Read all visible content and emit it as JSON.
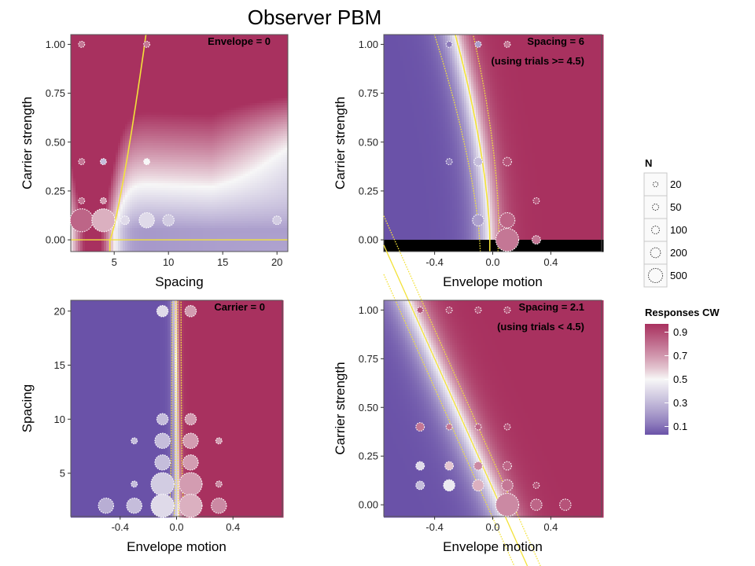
{
  "title": "Observer PBM",
  "colors": {
    "low": "#6a52a8",
    "mid": "#f7f7f7",
    "high": "#a8315f",
    "contour": "#f3e23a",
    "circle_stroke": "#ffffff"
  },
  "chart_data": [
    {
      "type": "heatmap",
      "id": "p1",
      "annotation": [
        "Envelope = 0"
      ],
      "xlabel": "Spacing",
      "ylabel": "Carrier strength",
      "xlim": [
        1,
        21
      ],
      "ylim": [
        -0.06,
        1.05
      ],
      "xticks": [
        5,
        10,
        15,
        20
      ],
      "xtick_labels": [
        "5",
        "10",
        "15",
        "20"
      ],
      "yticks": [
        0,
        0.25,
        0.5,
        0.75,
        1
      ],
      "ytick_labels": [
        "0.00",
        "0.25",
        "0.50",
        "0.75",
        "1.00"
      ],
      "points": [
        {
          "x": 2,
          "y": 1.0,
          "n": 20,
          "resp": 0.8
        },
        {
          "x": 8,
          "y": 1.0,
          "n": 20,
          "resp": 0.8
        },
        {
          "x": 2,
          "y": 0.4,
          "n": 20,
          "resp": 0.8
        },
        {
          "x": 4,
          "y": 0.4,
          "n": 20,
          "resp": 0.3
        },
        {
          "x": 8,
          "y": 0.4,
          "n": 20,
          "resp": 0.5
        },
        {
          "x": 2,
          "y": 0.2,
          "n": 20,
          "resp": 0.8
        },
        {
          "x": 4,
          "y": 0.2,
          "n": 20,
          "resp": 0.7
        },
        {
          "x": 2,
          "y": 0.1,
          "n": 500,
          "resp": 0.85
        },
        {
          "x": 4,
          "y": 0.1,
          "n": 500,
          "resp": 0.65
        },
        {
          "x": 6,
          "y": 0.1,
          "n": 50,
          "resp": 0.4
        },
        {
          "x": 8,
          "y": 0.1,
          "n": 200,
          "resp": 0.4
        },
        {
          "x": 10,
          "y": 0.1,
          "n": 100,
          "resp": 0.35
        },
        {
          "x": 20,
          "y": 0.1,
          "n": 50,
          "resp": 0.35
        }
      ]
    },
    {
      "type": "heatmap",
      "id": "p2",
      "annotation": [
        "Spacing = 6",
        "(using trials >= 4.5)"
      ],
      "xlabel": "Envelope motion",
      "ylabel": "Carrier strength",
      "xlim": [
        -0.75,
        0.75
      ],
      "ylim": [
        -0.06,
        1.05
      ],
      "xticks": [
        -0.4,
        0,
        0.4
      ],
      "xtick_labels": [
        "-0.4",
        "0.0",
        "0.4"
      ],
      "yticks": [
        0,
        0.25,
        0.5,
        0.75,
        1
      ],
      "ytick_labels": [
        "0.00",
        "0.25",
        "0.50",
        "0.75",
        "1.00"
      ],
      "points": [
        {
          "x": -0.3,
          "y": 1.0,
          "n": 20,
          "resp": 0.1
        },
        {
          "x": -0.1,
          "y": 1.0,
          "n": 20,
          "resp": 0.2
        },
        {
          "x": 0.1,
          "y": 1.0,
          "n": 20,
          "resp": 0.8
        },
        {
          "x": -0.3,
          "y": 0.4,
          "n": 20,
          "resp": 0.1
        },
        {
          "x": -0.1,
          "y": 0.4,
          "n": 50,
          "resp": 0.3
        },
        {
          "x": 0.1,
          "y": 0.4,
          "n": 50,
          "resp": 0.9
        },
        {
          "x": 0.3,
          "y": 0.2,
          "n": 20,
          "resp": 0.9
        },
        {
          "x": -0.1,
          "y": 0.1,
          "n": 100,
          "resp": 0.2
        },
        {
          "x": 0.1,
          "y": 0.1,
          "n": 200,
          "resp": 0.85
        },
        {
          "x": 0.1,
          "y": 0.0,
          "n": 500,
          "resp": 0.8
        },
        {
          "x": 0.3,
          "y": 0.0,
          "n": 50,
          "resp": 0.8
        }
      ]
    },
    {
      "type": "heatmap",
      "id": "p3",
      "annotation": [
        "Carrier = 0"
      ],
      "xlabel": "Envelope motion",
      "ylabel": "Spacing",
      "xlim": [
        -0.75,
        0.75
      ],
      "ylim": [
        1,
        21
      ],
      "xticks": [
        -0.4,
        0,
        0.4
      ],
      "xtick_labels": [
        "-0.4",
        "0.0",
        "0.4"
      ],
      "yticks": [
        5,
        10,
        15,
        20
      ],
      "ytick_labels": [
        "5",
        "10",
        "15",
        "20"
      ],
      "points": [
        {
          "x": -0.1,
          "y": 20,
          "n": 100,
          "resp": 0.4
        },
        {
          "x": 0.1,
          "y": 20,
          "n": 100,
          "resp": 0.7
        },
        {
          "x": -0.1,
          "y": 10,
          "n": 100,
          "resp": 0.3
        },
        {
          "x": 0.1,
          "y": 10,
          "n": 100,
          "resp": 0.7
        },
        {
          "x": -0.3,
          "y": 8,
          "n": 20,
          "resp": 0.3
        },
        {
          "x": -0.1,
          "y": 8,
          "n": 200,
          "resp": 0.3
        },
        {
          "x": 0.1,
          "y": 8,
          "n": 200,
          "resp": 0.7
        },
        {
          "x": 0.3,
          "y": 8,
          "n": 20,
          "resp": 0.7
        },
        {
          "x": -0.1,
          "y": 6,
          "n": 200,
          "resp": 0.3
        },
        {
          "x": 0.1,
          "y": 6,
          "n": 200,
          "resp": 0.7
        },
        {
          "x": -0.3,
          "y": 4,
          "n": 20,
          "resp": 0.3
        },
        {
          "x": -0.1,
          "y": 4,
          "n": 500,
          "resp": 0.35
        },
        {
          "x": 0.1,
          "y": 4,
          "n": 500,
          "resp": 0.7
        },
        {
          "x": 0.3,
          "y": 4,
          "n": 20,
          "resp": 0.75
        },
        {
          "x": -0.5,
          "y": 2,
          "n": 200,
          "resp": 0.25
        },
        {
          "x": -0.3,
          "y": 2,
          "n": 200,
          "resp": 0.3
        },
        {
          "x": -0.1,
          "y": 2,
          "n": 500,
          "resp": 0.4
        },
        {
          "x": 0.1,
          "y": 2,
          "n": 500,
          "resp": 0.65
        },
        {
          "x": 0.3,
          "y": 2,
          "n": 200,
          "resp": 0.75
        }
      ]
    },
    {
      "type": "heatmap",
      "id": "p4",
      "annotation": [
        "Spacing = 2.1",
        "(using trials < 4.5)"
      ],
      "xlabel": "Envelope motion",
      "ylabel": "Carrier strength",
      "xlim": [
        -0.75,
        0.75
      ],
      "ylim": [
        -0.06,
        1.05
      ],
      "xticks": [
        -0.4,
        0,
        0.4
      ],
      "xtick_labels": [
        "-0.4",
        "0.0",
        "0.4"
      ],
      "yticks": [
        0,
        0.25,
        0.5,
        0.75,
        1
      ],
      "ytick_labels": [
        "0.00",
        "0.25",
        "0.50",
        "0.75",
        "1.00"
      ],
      "points": [
        {
          "x": -0.5,
          "y": 1.0,
          "n": 20,
          "resp": 0.9
        },
        {
          "x": -0.3,
          "y": 1.0,
          "n": 20,
          "resp": 0.9
        },
        {
          "x": -0.1,
          "y": 1.0,
          "n": 20,
          "resp": 0.9
        },
        {
          "x": 0.1,
          "y": 1.0,
          "n": 20,
          "resp": 0.9
        },
        {
          "x": -0.5,
          "y": 0.4,
          "n": 50,
          "resp": 0.8
        },
        {
          "x": -0.3,
          "y": 0.4,
          "n": 20,
          "resp": 0.8
        },
        {
          "x": -0.1,
          "y": 0.4,
          "n": 20,
          "resp": 0.85
        },
        {
          "x": 0.1,
          "y": 0.4,
          "n": 20,
          "resp": 0.9
        },
        {
          "x": -0.5,
          "y": 0.2,
          "n": 50,
          "resp": 0.4
        },
        {
          "x": -0.3,
          "y": 0.2,
          "n": 50,
          "resp": 0.6
        },
        {
          "x": -0.1,
          "y": 0.2,
          "n": 50,
          "resp": 0.75
        },
        {
          "x": 0.1,
          "y": 0.2,
          "n": 50,
          "resp": 0.85
        },
        {
          "x": -0.5,
          "y": 0.1,
          "n": 50,
          "resp": 0.3
        },
        {
          "x": -0.3,
          "y": 0.1,
          "n": 100,
          "resp": 0.45
        },
        {
          "x": -0.1,
          "y": 0.1,
          "n": 100,
          "resp": 0.65
        },
        {
          "x": 0.1,
          "y": 0.1,
          "n": 100,
          "resp": 0.8
        },
        {
          "x": 0.3,
          "y": 0.1,
          "n": 20,
          "resp": 0.9
        },
        {
          "x": 0.1,
          "y": 0.0,
          "n": 500,
          "resp": 0.75
        },
        {
          "x": 0.3,
          "y": 0.0,
          "n": 100,
          "resp": 0.85
        },
        {
          "x": 0.5,
          "y": 0.0,
          "n": 100,
          "resp": 0.9
        }
      ]
    }
  ],
  "legend_n": {
    "title": "N",
    "items": [
      {
        "label": "20",
        "n": 20
      },
      {
        "label": "50",
        "n": 50
      },
      {
        "label": "100",
        "n": 100
      },
      {
        "label": "200",
        "n": 200
      },
      {
        "label": "500",
        "n": 500
      }
    ]
  },
  "legend_resp": {
    "title": "Responses CW",
    "ticks": [
      {
        "label": "0.9",
        "value": 0.9
      },
      {
        "label": "0.7",
        "value": 0.7
      },
      {
        "label": "0.5",
        "value": 0.5
      },
      {
        "label": "0.3",
        "value": 0.3
      },
      {
        "label": "0.1",
        "value": 0.1
      }
    ]
  }
}
